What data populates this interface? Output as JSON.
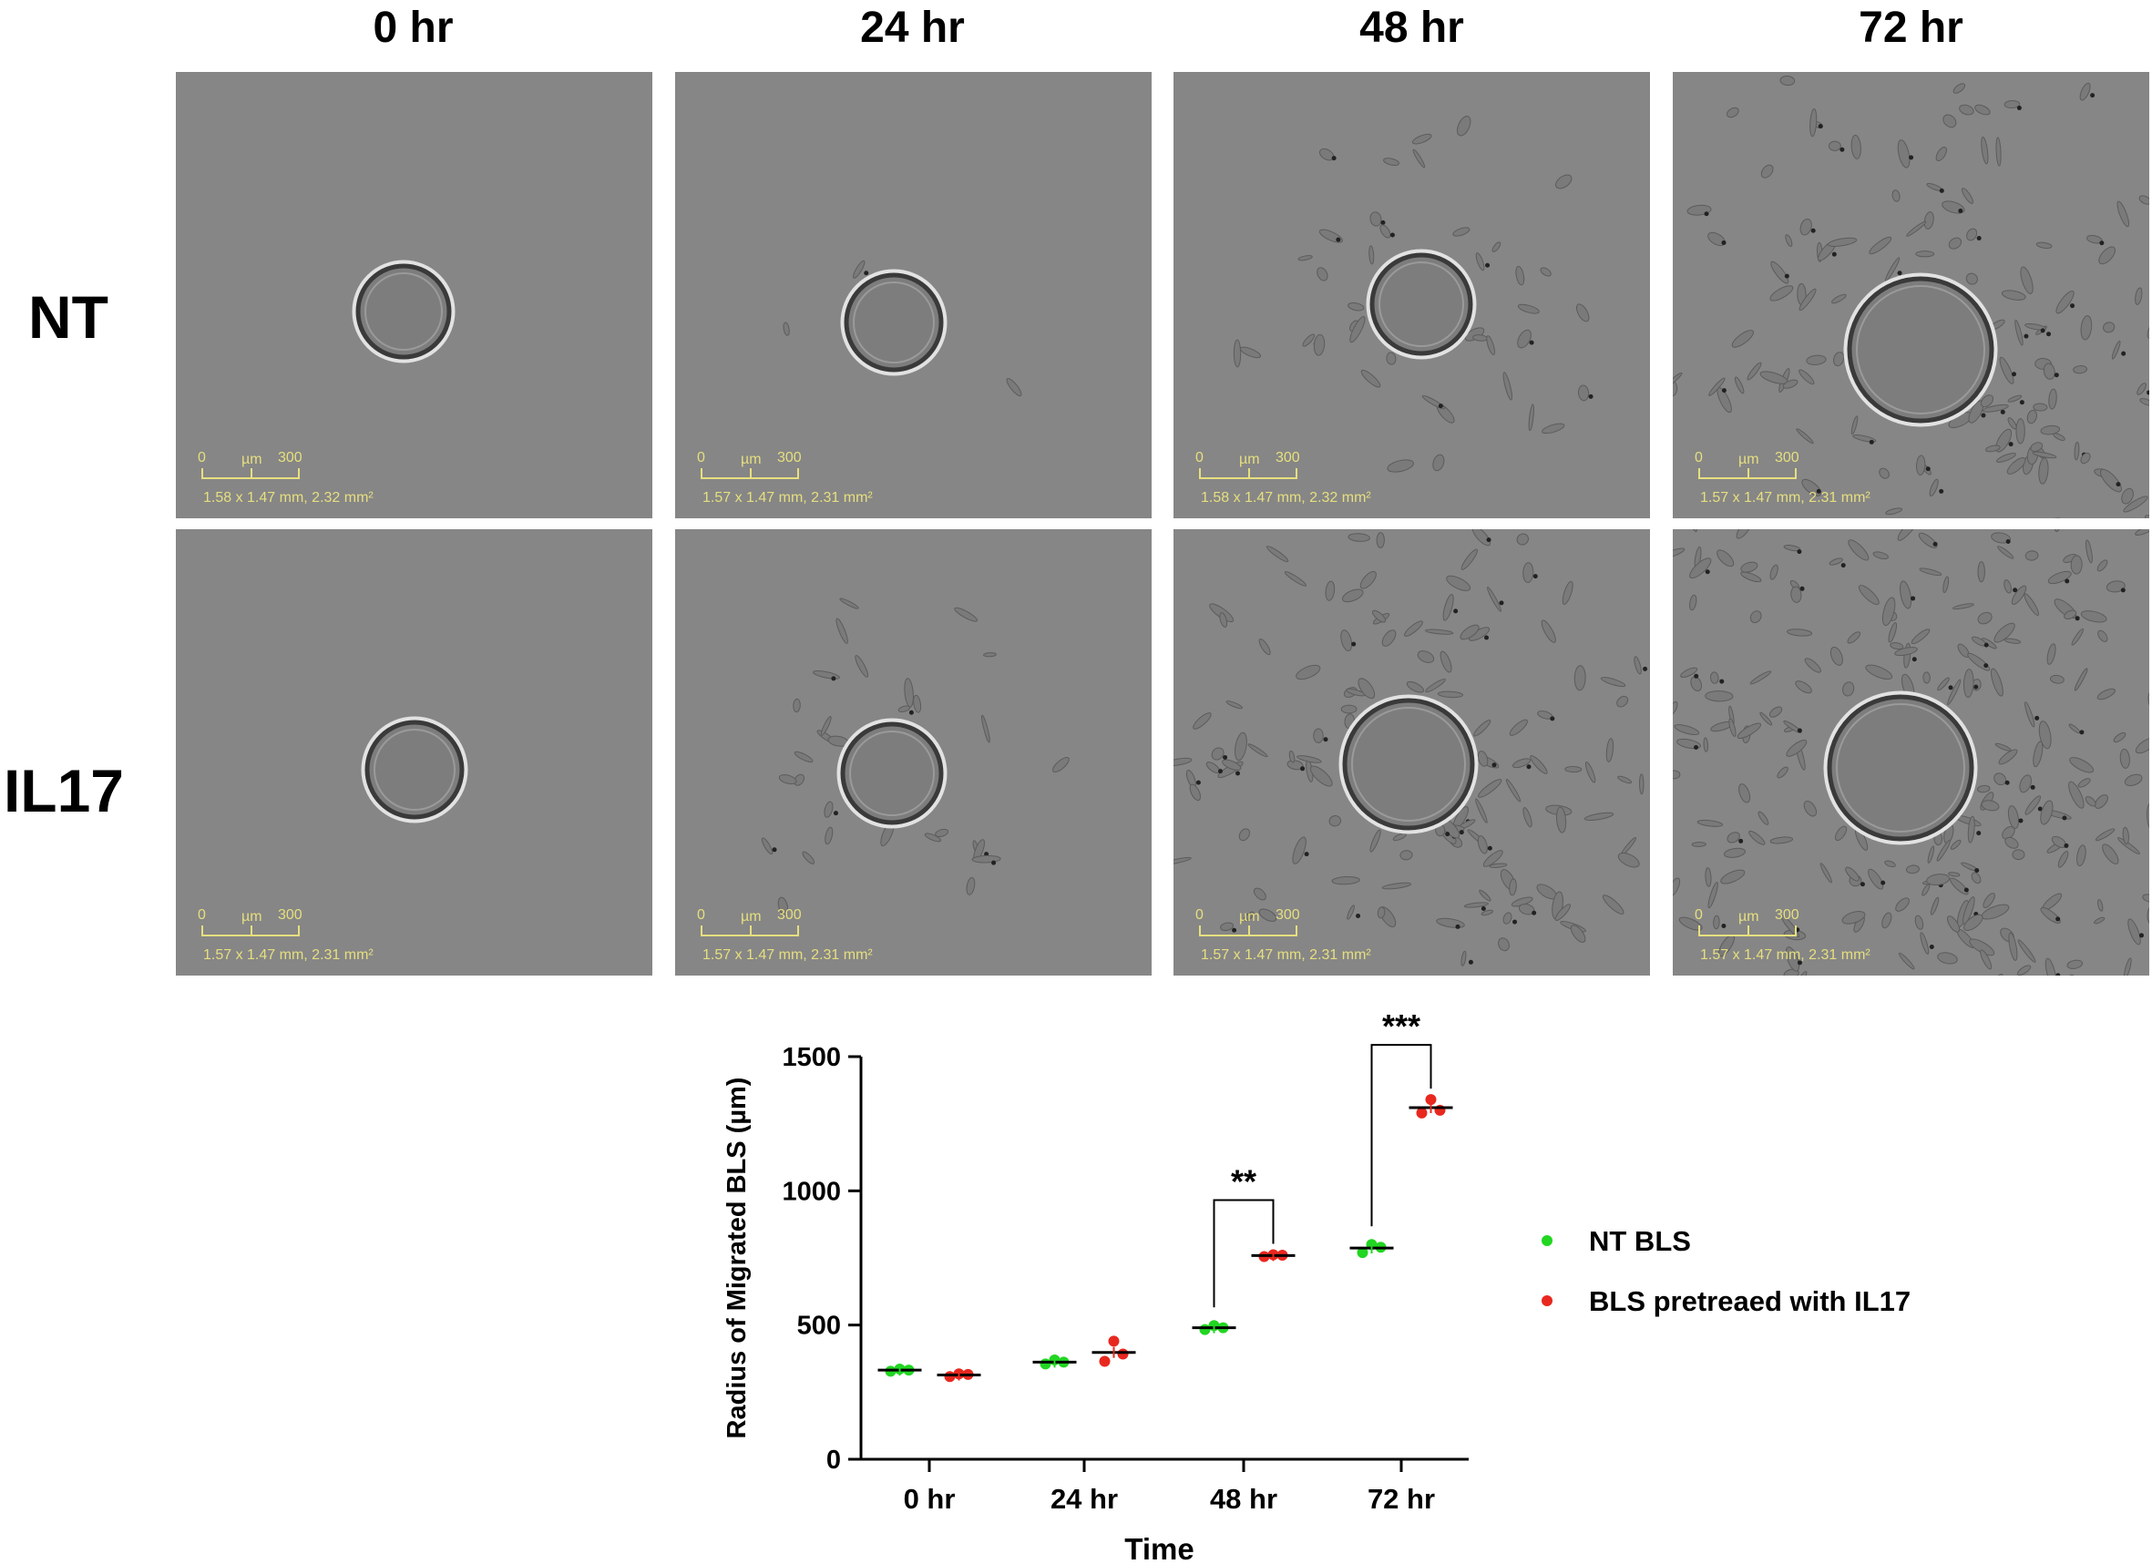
{
  "columns": [
    "0 hr",
    "24 hr",
    "48 hr",
    "72 hr"
  ],
  "rows": [
    "NT",
    "IL17"
  ],
  "scalebar": {
    "zero": "0",
    "unit": "µm",
    "max": "300",
    "dims": [
      [
        "1.58 x 1.47 mm, 2.32 mm²",
        "1.57 x 1.47 mm, 2.31 mm²",
        "1.58 x 1.47 mm, 2.32 mm²",
        "1.57 x 1.47 mm, 2.31 mm²"
      ],
      [
        "1.57 x 1.47 mm, 2.31 mm²",
        "1.57 x 1.47 mm, 2.31 mm²",
        "1.57 x 1.47 mm, 2.31 mm²",
        "1.57 x 1.47 mm, 2.31 mm²"
      ]
    ]
  },
  "colors": {
    "panel_bg": "#868686",
    "nt": "#22d622",
    "il17": "#e8281f",
    "scalebar": "#e6df7f"
  },
  "chart_data": {
    "type": "scatter",
    "xlabel": "Time",
    "ylabel": "Radius of Migrated BLS (µm)",
    "categories": [
      "0 hr",
      "24 hr",
      "48 hr",
      "72 hr"
    ],
    "ylim": [
      0,
      1500
    ],
    "yticks": [
      0,
      500,
      1000,
      1500
    ],
    "legend_position": "right",
    "series": [
      {
        "name": "NT BLS",
        "color": "#22d622",
        "points": [
          [
            328,
            336,
            332
          ],
          [
            355,
            370,
            362
          ],
          [
            483,
            498,
            490
          ],
          [
            770,
            800,
            790
          ]
        ],
        "means": [
          332,
          362,
          490,
          787
        ]
      },
      {
        "name": "BLS pretreaed with IL17",
        "color": "#e8281f",
        "points": [
          [
            308,
            318,
            316
          ],
          [
            365,
            440,
            392
          ],
          [
            755,
            762,
            760
          ],
          [
            1290,
            1340,
            1300
          ]
        ],
        "means": [
          314,
          398,
          759,
          1310
        ]
      }
    ],
    "significance": [
      {
        "category": "48 hr",
        "label": "**"
      },
      {
        "category": "72 hr",
        "label": "***"
      }
    ]
  }
}
